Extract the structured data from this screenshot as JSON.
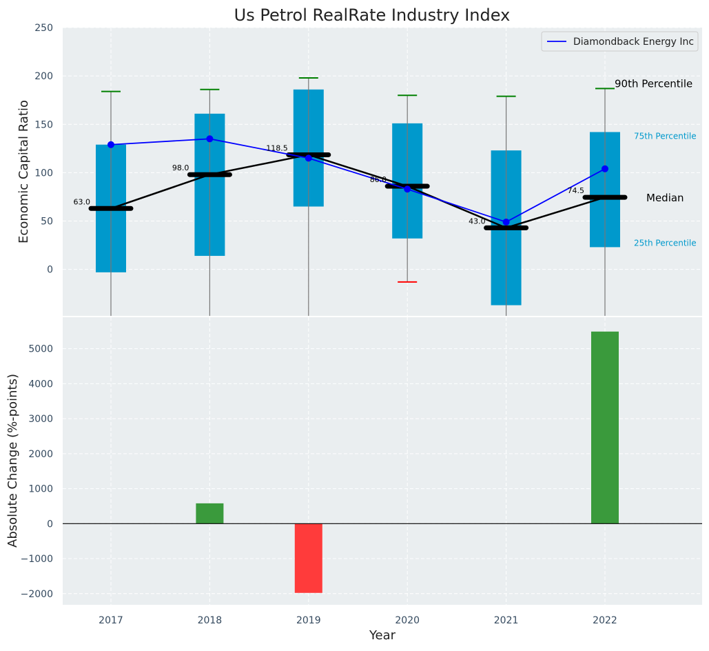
{
  "chart_data": [
    {
      "type": "box",
      "title": "Us Petrol RealRate Industry Index",
      "ylabel": "Economic Capital Ratio",
      "ylim": [
        -48,
        250
      ],
      "yticks": [
        0,
        50,
        100,
        150,
        200,
        250
      ],
      "categories": [
        "2017",
        "2018",
        "2019",
        "2020",
        "2021",
        "2022"
      ],
      "p25": [
        -3,
        14,
        65,
        32,
        -37,
        23
      ],
      "p75": [
        129,
        161,
        186,
        151,
        123,
        142
      ],
      "median": [
        63.0,
        98.0,
        118.5,
        86.0,
        43.0,
        74.5
      ],
      "median_labels": [
        "63.0",
        "98.0",
        "118.5",
        "86.0",
        "43.0",
        "74.5"
      ],
      "p90": [
        184,
        186,
        198,
        180,
        179,
        187
      ],
      "p10": [
        -60,
        -60,
        -60,
        -13,
        -60,
        -60
      ],
      "p10_cap_visible": [
        false,
        false,
        false,
        true,
        false,
        false
      ],
      "series": [
        {
          "name": "Diamondback Energy Inc",
          "values": [
            129,
            135,
            115,
            83,
            49,
            104
          ],
          "color": "#0000ff"
        }
      ],
      "legend": {
        "entries": [
          "Diamondback Energy Inc"
        ],
        "placement": "top-right"
      },
      "annotations": {
        "p90": "90th Percentile",
        "p75": "75th Percentile",
        "median": "Median",
        "p25": "25th Percentile"
      },
      "colors": {
        "box": "#0099cc",
        "p90_cap": "#008000",
        "p10_cap": "#ff0000",
        "median": "#000000"
      },
      "grid": true
    },
    {
      "type": "bar",
      "xlabel": "Year",
      "ylabel": "Absolute Change (%-points)",
      "ylim": [
        -2320,
        5900
      ],
      "yticks": [
        -2000,
        -1000,
        0,
        1000,
        2000,
        3000,
        4000,
        5000
      ],
      "ytick_labels": [
        "−2000",
        "−1000",
        "0",
        "1000",
        "2000",
        "3000",
        "4000",
        "5000"
      ],
      "categories": [
        "2017",
        "2018",
        "2019",
        "2020",
        "2021",
        "2022"
      ],
      "values": [
        0,
        580,
        -1980,
        0,
        0,
        5490
      ],
      "colors": {
        "positive": "#3a9a3c",
        "negative": "#ff3b3b"
      },
      "grid": true
    }
  ]
}
